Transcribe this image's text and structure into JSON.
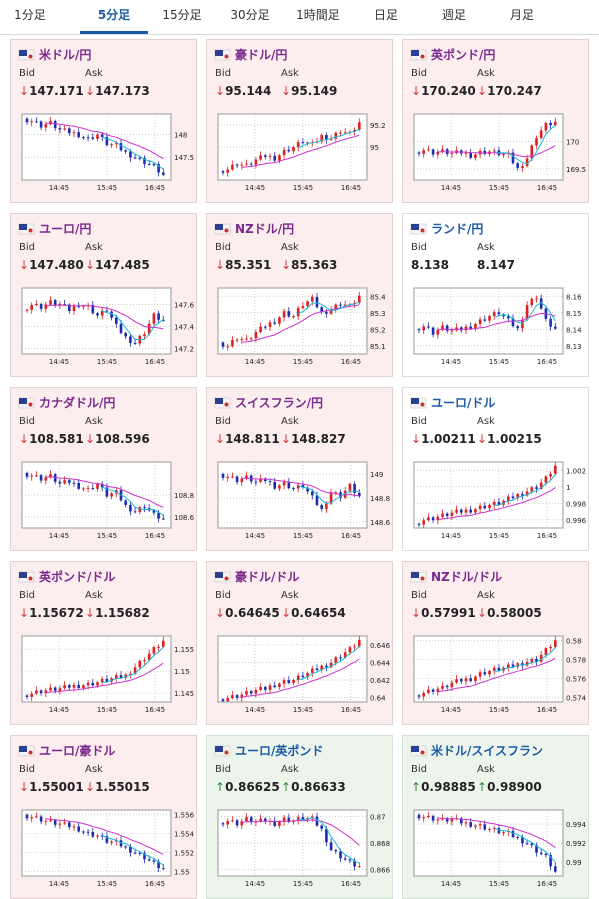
{
  "tabs": [
    {
      "label": "1分足",
      "active": false
    },
    {
      "label": "5分足",
      "active": true
    },
    {
      "label": "15分足",
      "active": false
    },
    {
      "label": "30分足",
      "active": false
    },
    {
      "label": "1時間足",
      "active": false
    },
    {
      "label": "日足",
      "active": false
    },
    {
      "label": "週足",
      "active": false
    },
    {
      "label": "月足",
      "active": false
    }
  ],
  "labels": {
    "bid": "Bid",
    "ask": "Ask"
  },
  "colors": {
    "bullish": "#e02020",
    "bearish": "#1c2bb0",
    "ma_fast": "#18b8d8",
    "ma_slow": "#cc33cc",
    "card_down": "#fcedef",
    "card_up": "#ecf4ec"
  },
  "cards": [
    {
      "title": "米ドル/円",
      "flag": "us-jp-flag",
      "dir": "down",
      "bid": "147.171",
      "ask": "147.173",
      "style": "down",
      "chart_data": {
        "type": "candlestick",
        "x_ticks": [
          "14:45",
          "15:45",
          "16:45"
        ],
        "y_ticks": [
          147.5,
          148
        ],
        "ylim": [
          147.0,
          148.45
        ],
        "trend": [
          148.35,
          148.3,
          148.2,
          148.25,
          148.1,
          148.05,
          148.0,
          147.9,
          148.0,
          147.8,
          147.75,
          147.6,
          147.5,
          147.4,
          147.3,
          147.1
        ]
      }
    },
    {
      "title": "豪ドル/円",
      "flag": "au-jp-flag",
      "dir": "down",
      "bid": "95.144",
      "ask": "95.149",
      "style": "down",
      "chart_data": {
        "type": "candlestick",
        "x_ticks": [
          "14:45",
          "15:45",
          "16:45"
        ],
        "y_ticks": [
          95,
          95.2
        ],
        "ylim": [
          94.7,
          95.3
        ],
        "trend": [
          94.78,
          94.8,
          94.85,
          94.83,
          94.88,
          94.92,
          94.9,
          94.96,
          95.0,
          95.05,
          95.02,
          95.1,
          95.08,
          95.15,
          95.12,
          95.22
        ]
      }
    },
    {
      "title": "英ポンド/円",
      "flag": "gb-jp-flag",
      "dir": "down",
      "bid": "170.240",
      "ask": "170.247",
      "style": "down",
      "chart_data": {
        "type": "candlestick",
        "x_ticks": [
          "14:45",
          "15:45",
          "16:45"
        ],
        "y_ticks": [
          169.5,
          170
        ],
        "ylim": [
          169.3,
          170.5
        ],
        "trend": [
          169.8,
          169.85,
          169.8,
          169.82,
          169.78,
          169.8,
          169.75,
          169.8,
          169.82,
          169.78,
          169.75,
          169.5,
          169.7,
          170.1,
          170.3,
          170.35
        ]
      }
    },
    {
      "title": "ユーロ/円",
      "flag": "eu-jp-flag",
      "dir": "down",
      "bid": "147.480",
      "ask": "147.485",
      "style": "down",
      "chart_data": {
        "type": "candlestick",
        "x_ticks": [
          "14:45",
          "15:45",
          "16:45"
        ],
        "y_ticks": [
          147.2,
          147.4,
          147.6
        ],
        "ylim": [
          147.15,
          147.75
        ],
        "trend": [
          147.55,
          147.6,
          147.58,
          147.62,
          147.6,
          147.55,
          147.6,
          147.58,
          147.5,
          147.55,
          147.4,
          147.3,
          147.25,
          147.35,
          147.5,
          147.45
        ]
      }
    },
    {
      "title": "NZドル/円",
      "flag": "nz-jp-flag",
      "dir": "down",
      "bid": "85.351",
      "ask": "85.363",
      "style": "down",
      "chart_data": {
        "type": "candlestick",
        "x_ticks": [
          "14:45",
          "15:45",
          "16:45"
        ],
        "y_ticks": [
          85.1,
          85.2,
          85.3,
          85.4
        ],
        "ylim": [
          85.05,
          85.45
        ],
        "trend": [
          85.12,
          85.1,
          85.15,
          85.13,
          85.18,
          85.22,
          85.25,
          85.3,
          85.28,
          85.35,
          85.38,
          85.3,
          85.32,
          85.36,
          85.34,
          85.4
        ]
      }
    },
    {
      "title": "ランド/円",
      "flag": "za-jp-flag",
      "dir": "none",
      "bid": "8.138",
      "ask": "8.147",
      "style": "neutral",
      "chart_data": {
        "type": "candlestick",
        "x_ticks": [
          "14:45",
          "15:45",
          "16:45"
        ],
        "y_ticks": [
          8.13,
          8.14,
          8.15,
          8.16
        ],
        "ylim": [
          8.125,
          8.165
        ],
        "trend": [
          8.14,
          8.142,
          8.138,
          8.141,
          8.139,
          8.14,
          8.142,
          8.145,
          8.148,
          8.15,
          8.145,
          8.14,
          8.155,
          8.16,
          8.145,
          8.14
        ]
      }
    },
    {
      "title": "カナダドル/円",
      "flag": "ca-jp-flag",
      "dir": "down",
      "bid": "108.581",
      "ask": "108.596",
      "style": "down",
      "chart_data": {
        "type": "candlestick",
        "x_ticks": [
          "14:45",
          "15:45",
          "16:45"
        ],
        "y_ticks": [
          108.6,
          108.8
        ],
        "ylim": [
          108.5,
          109.1
        ],
        "trend": [
          109.0,
          108.98,
          108.95,
          108.97,
          108.9,
          108.92,
          108.88,
          108.85,
          108.9,
          108.8,
          108.82,
          108.7,
          108.65,
          108.7,
          108.62,
          108.58
        ]
      }
    },
    {
      "title": "スイスフラン/円",
      "flag": "ch-jp-flag",
      "dir": "down",
      "bid": "148.811",
      "ask": "148.827",
      "style": "down",
      "chart_data": {
        "type": "candlestick",
        "x_ticks": [
          "14:45",
          "15:45",
          "16:45"
        ],
        "y_ticks": [
          148.6,
          148.8,
          149
        ],
        "ylim": [
          148.55,
          149.1
        ],
        "trend": [
          149.0,
          148.98,
          148.95,
          148.97,
          148.93,
          148.95,
          148.9,
          148.92,
          148.88,
          148.9,
          148.8,
          148.7,
          148.85,
          148.82,
          148.9,
          148.81
        ]
      }
    },
    {
      "title": "ユーロ/ドル",
      "flag": "eu-us-flag",
      "dir": "down",
      "bid": "1.00211",
      "ask": "1.00215",
      "style": "neutral",
      "chart_data": {
        "type": "candlestick",
        "x_ticks": [
          "14:45",
          "15:45",
          "16:45"
        ],
        "y_ticks": [
          0.996,
          0.998,
          1,
          1.002
        ],
        "ylim": [
          0.995,
          1.003
        ],
        "trend": [
          0.9955,
          0.996,
          0.9962,
          0.9965,
          0.9968,
          0.997,
          0.9972,
          0.9975,
          0.9978,
          0.998,
          0.9985,
          0.999,
          0.9995,
          1.0,
          1.001,
          1.0025
        ]
      }
    },
    {
      "title": "英ポンド/ドル",
      "flag": "gb-us-flag",
      "dir": "down",
      "bid": "1.15672",
      "ask": "1.15682",
      "style": "down",
      "chart_data": {
        "type": "candlestick",
        "x_ticks": [
          "14:45",
          "15:45",
          "16:45"
        ],
        "y_ticks": [
          1.145,
          1.15,
          1.155
        ],
        "ylim": [
          1.143,
          1.158
        ],
        "trend": [
          1.1445,
          1.145,
          1.1455,
          1.1458,
          1.146,
          1.1465,
          1.1468,
          1.147,
          1.1475,
          1.148,
          1.1485,
          1.149,
          1.151,
          1.153,
          1.155,
          1.1568
        ]
      }
    },
    {
      "title": "豪ドル/ドル",
      "flag": "au-us-flag",
      "dir": "down",
      "bid": "0.64645",
      "ask": "0.64654",
      "style": "down",
      "chart_data": {
        "type": "candlestick",
        "x_ticks": [
          "14:45",
          "15:45",
          "16:45"
        ],
        "y_ticks": [
          0.64,
          0.642,
          0.644,
          0.646
        ],
        "ylim": [
          0.6395,
          0.647
        ],
        "trend": [
          0.6398,
          0.64,
          0.6402,
          0.6405,
          0.6408,
          0.641,
          0.6415,
          0.6418,
          0.642,
          0.6425,
          0.643,
          0.6435,
          0.644,
          0.6448,
          0.6455,
          0.6465
        ]
      }
    },
    {
      "title": "NZドル/ドル",
      "flag": "nz-us-flag",
      "dir": "down",
      "bid": "0.57991",
      "ask": "0.58005",
      "style": "down",
      "chart_data": {
        "type": "candlestick",
        "x_ticks": [
          "14:45",
          "15:45",
          "16:45"
        ],
        "y_ticks": [
          0.574,
          0.576,
          0.578,
          0.58
        ],
        "ylim": [
          0.5735,
          0.5805
        ],
        "trend": [
          0.5742,
          0.5745,
          0.5748,
          0.575,
          0.5755,
          0.5758,
          0.576,
          0.5765,
          0.5768,
          0.577,
          0.5772,
          0.5775,
          0.5778,
          0.578,
          0.579,
          0.58
        ]
      }
    },
    {
      "title": "ユーロ/豪ドル",
      "flag": "eu-au-flag",
      "dir": "down",
      "bid": "1.55001",
      "ask": "1.55015",
      "style": "down",
      "chart_data": {
        "type": "candlestick",
        "x_ticks": [
          "14:45",
          "15:45",
          "16:45"
        ],
        "y_ticks": [
          1.55,
          1.552,
          1.554,
          1.556
        ],
        "ylim": [
          1.5495,
          1.5565
        ],
        "trend": [
          1.556,
          1.5558,
          1.5555,
          1.5552,
          1.555,
          1.5548,
          1.5545,
          1.554,
          1.5538,
          1.5532,
          1.553,
          1.5525,
          1.552,
          1.5515,
          1.5508,
          1.5502
        ]
      }
    },
    {
      "title": "ユーロ/英ポンド",
      "flag": "eu-gb-flag",
      "dir": "up",
      "bid": "0.86625",
      "ask": "0.86633",
      "style": "up",
      "chart_data": {
        "type": "candlestick",
        "x_ticks": [
          "14:45",
          "15:45",
          "16:45"
        ],
        "y_ticks": [
          0.866,
          0.868,
          0.87
        ],
        "ylim": [
          0.8655,
          0.8705
        ],
        "trend": [
          0.8695,
          0.8697,
          0.8695,
          0.8698,
          0.8696,
          0.8697,
          0.8695,
          0.8698,
          0.8697,
          0.8699,
          0.8698,
          0.869,
          0.8675,
          0.867,
          0.8665,
          0.8662
        ]
      }
    },
    {
      "title": "米ドル/スイスフラン",
      "flag": "us-ch-flag",
      "dir": "up",
      "bid": "0.98885",
      "ask": "0.98900",
      "style": "up",
      "chart_data": {
        "type": "candlestick",
        "x_ticks": [
          "14:45",
          "15:45",
          "16:45"
        ],
        "y_ticks": [
          0.99,
          0.992,
          0.994
        ],
        "ylim": [
          0.9885,
          0.9955
        ],
        "trend": [
          0.995,
          0.9948,
          0.9946,
          0.9944,
          0.9945,
          0.9942,
          0.994,
          0.9938,
          0.9935,
          0.9932,
          0.993,
          0.9925,
          0.992,
          0.9912,
          0.9905,
          0.9889
        ]
      }
    }
  ]
}
